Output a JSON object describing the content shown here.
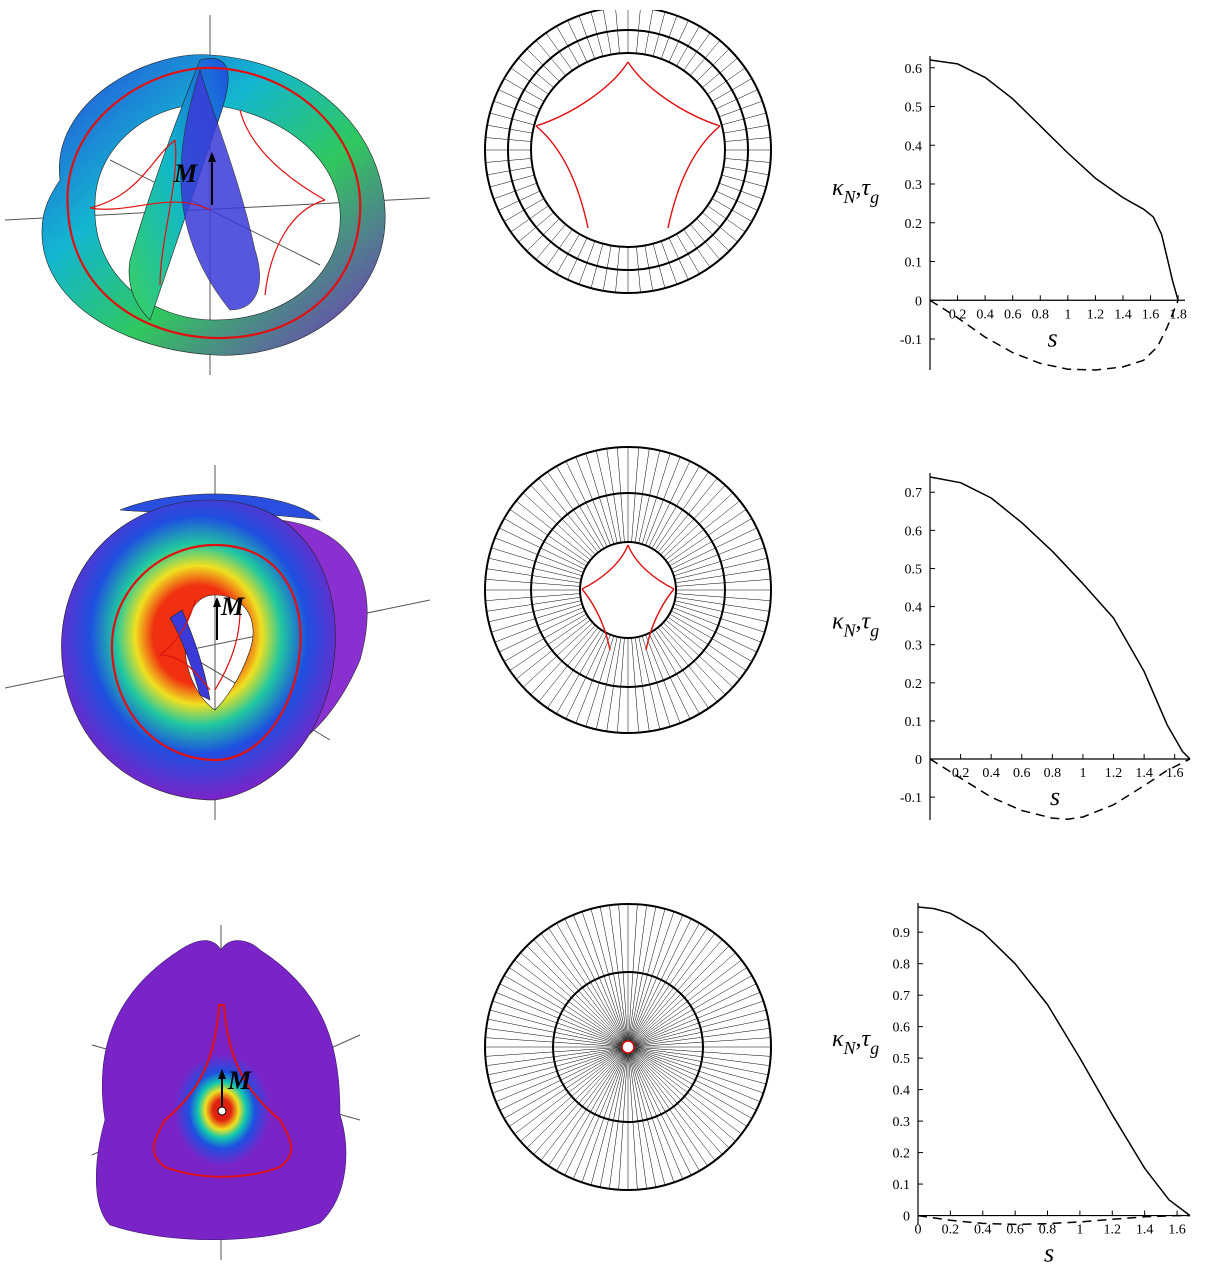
{
  "surface_label": "M",
  "colors": {
    "curve": "#e01010",
    "violet": "#7a24c8",
    "blue": "#1f4fe0",
    "cyan": "#10b8c8",
    "green": "#36d060",
    "yellow": "#f0e020",
    "red": "#e02010",
    "axis": "#555555"
  },
  "chart_data": [
    {
      "type": "line",
      "xlabel": "s",
      "ylabel_main": "κ",
      "ylabel_sub1": "N",
      "ylabel_sep": ",τ",
      "ylabel_sub2": "g",
      "xlim": [
        0,
        1.85
      ],
      "ylim": [
        -0.18,
        0.62
      ],
      "xticks": [
        "0.2",
        "0.4",
        "0.6",
        "0.8",
        "1",
        "1.2",
        "1.4",
        "1.6",
        "1.8"
      ],
      "xtick_values": [
        0.2,
        0.4,
        0.6,
        0.8,
        1,
        1.2,
        1.4,
        1.6,
        1.8
      ],
      "yticks": [
        "-0.1",
        "0",
        "0.1",
        "0.2",
        "0.3",
        "0.4",
        "0.5",
        "0.6"
      ],
      "ytick_values": [
        -0.1,
        0,
        0.1,
        0.2,
        0.3,
        0.4,
        0.5,
        0.6
      ],
      "show_zero_x": false,
      "series": [
        {
          "style": "solid",
          "x": [
            0,
            0.2,
            0.4,
            0.6,
            0.8,
            1.0,
            1.2,
            1.4,
            1.55,
            1.62,
            1.68,
            1.72,
            1.76,
            1.8
          ],
          "y": [
            0.62,
            0.61,
            0.575,
            0.52,
            0.45,
            0.38,
            0.315,
            0.265,
            0.235,
            0.215,
            0.17,
            0.11,
            0.05,
            0
          ]
        },
        {
          "style": "dashed",
          "x": [
            0,
            0.2,
            0.4,
            0.6,
            0.8,
            1.0,
            1.2,
            1.4,
            1.55,
            1.65,
            1.72,
            1.8
          ],
          "y": [
            0,
            -0.045,
            -0.095,
            -0.135,
            -0.163,
            -0.178,
            -0.18,
            -0.172,
            -0.155,
            -0.12,
            -0.07,
            0
          ]
        }
      ]
    },
    {
      "type": "line",
      "xlabel": "s",
      "ylabel_main": "κ",
      "ylabel_sub1": "N",
      "ylabel_sep": ",τ",
      "ylabel_sub2": "g",
      "xlim": [
        0,
        1.7
      ],
      "ylim": [
        -0.16,
        0.74
      ],
      "xticks": [
        "0.2",
        "0.4",
        "0.6",
        "0.8",
        "1",
        "1.2",
        "1.4",
        "1.6"
      ],
      "xtick_values": [
        0.2,
        0.4,
        0.6,
        0.8,
        1,
        1.2,
        1.4,
        1.6
      ],
      "yticks": [
        "-0.1",
        "0",
        "0.1",
        "0.2",
        "0.3",
        "0.4",
        "0.5",
        "0.6",
        "0.7"
      ],
      "ytick_values": [
        -0.1,
        0,
        0.1,
        0.2,
        0.3,
        0.4,
        0.5,
        0.6,
        0.7
      ],
      "show_zero_x": false,
      "series": [
        {
          "style": "solid",
          "x": [
            0,
            0.2,
            0.4,
            0.6,
            0.8,
            1.0,
            1.2,
            1.4,
            1.55,
            1.65,
            1.7
          ],
          "y": [
            0.74,
            0.725,
            0.685,
            0.62,
            0.545,
            0.46,
            0.37,
            0.23,
            0.09,
            0.02,
            0
          ]
        },
        {
          "style": "dashed",
          "x": [
            0,
            0.2,
            0.4,
            0.6,
            0.8,
            0.9,
            1.0,
            1.2,
            1.4,
            1.55,
            1.7
          ],
          "y": [
            0,
            -0.05,
            -0.1,
            -0.135,
            -0.155,
            -0.158,
            -0.152,
            -0.12,
            -0.07,
            -0.03,
            0
          ]
        }
      ]
    },
    {
      "type": "line",
      "xlabel": "s",
      "ylabel_main": "κ",
      "ylabel_sub1": "N",
      "ylabel_sep": ",τ",
      "ylabel_sub2": "g",
      "xlim": [
        0,
        1.68
      ],
      "ylim": [
        -0.03,
        0.98
      ],
      "xticks": [
        "0",
        "0.2",
        "0.4",
        "0.6",
        "0.8",
        "1",
        "1.2",
        "1.4",
        "1.6"
      ],
      "xtick_values": [
        0,
        0.2,
        0.4,
        0.6,
        0.8,
        1,
        1.2,
        1.4,
        1.6
      ],
      "yticks": [
        "0",
        "0.1",
        "0.2",
        "0.3",
        "0.4",
        "0.5",
        "0.6",
        "0.7",
        "0.8",
        "0.9"
      ],
      "ytick_values": [
        0,
        0.1,
        0.2,
        0.3,
        0.4,
        0.5,
        0.6,
        0.7,
        0.8,
        0.9
      ],
      "show_zero_x": true,
      "series": [
        {
          "style": "solid",
          "x": [
            0,
            0.1,
            0.2,
            0.4,
            0.6,
            0.8,
            1.0,
            1.2,
            1.4,
            1.55,
            1.68
          ],
          "y": [
            0.98,
            0.975,
            0.96,
            0.9,
            0.8,
            0.67,
            0.5,
            0.32,
            0.15,
            0.05,
            0
          ]
        },
        {
          "style": "dashed",
          "x": [
            0,
            0.2,
            0.4,
            0.6,
            0.8,
            1.0,
            1.2,
            1.4,
            1.6,
            1.68
          ],
          "y": [
            0,
            -0.015,
            -0.025,
            -0.028,
            -0.026,
            -0.02,
            -0.012,
            -0.004,
            0,
            0
          ]
        }
      ]
    }
  ]
}
